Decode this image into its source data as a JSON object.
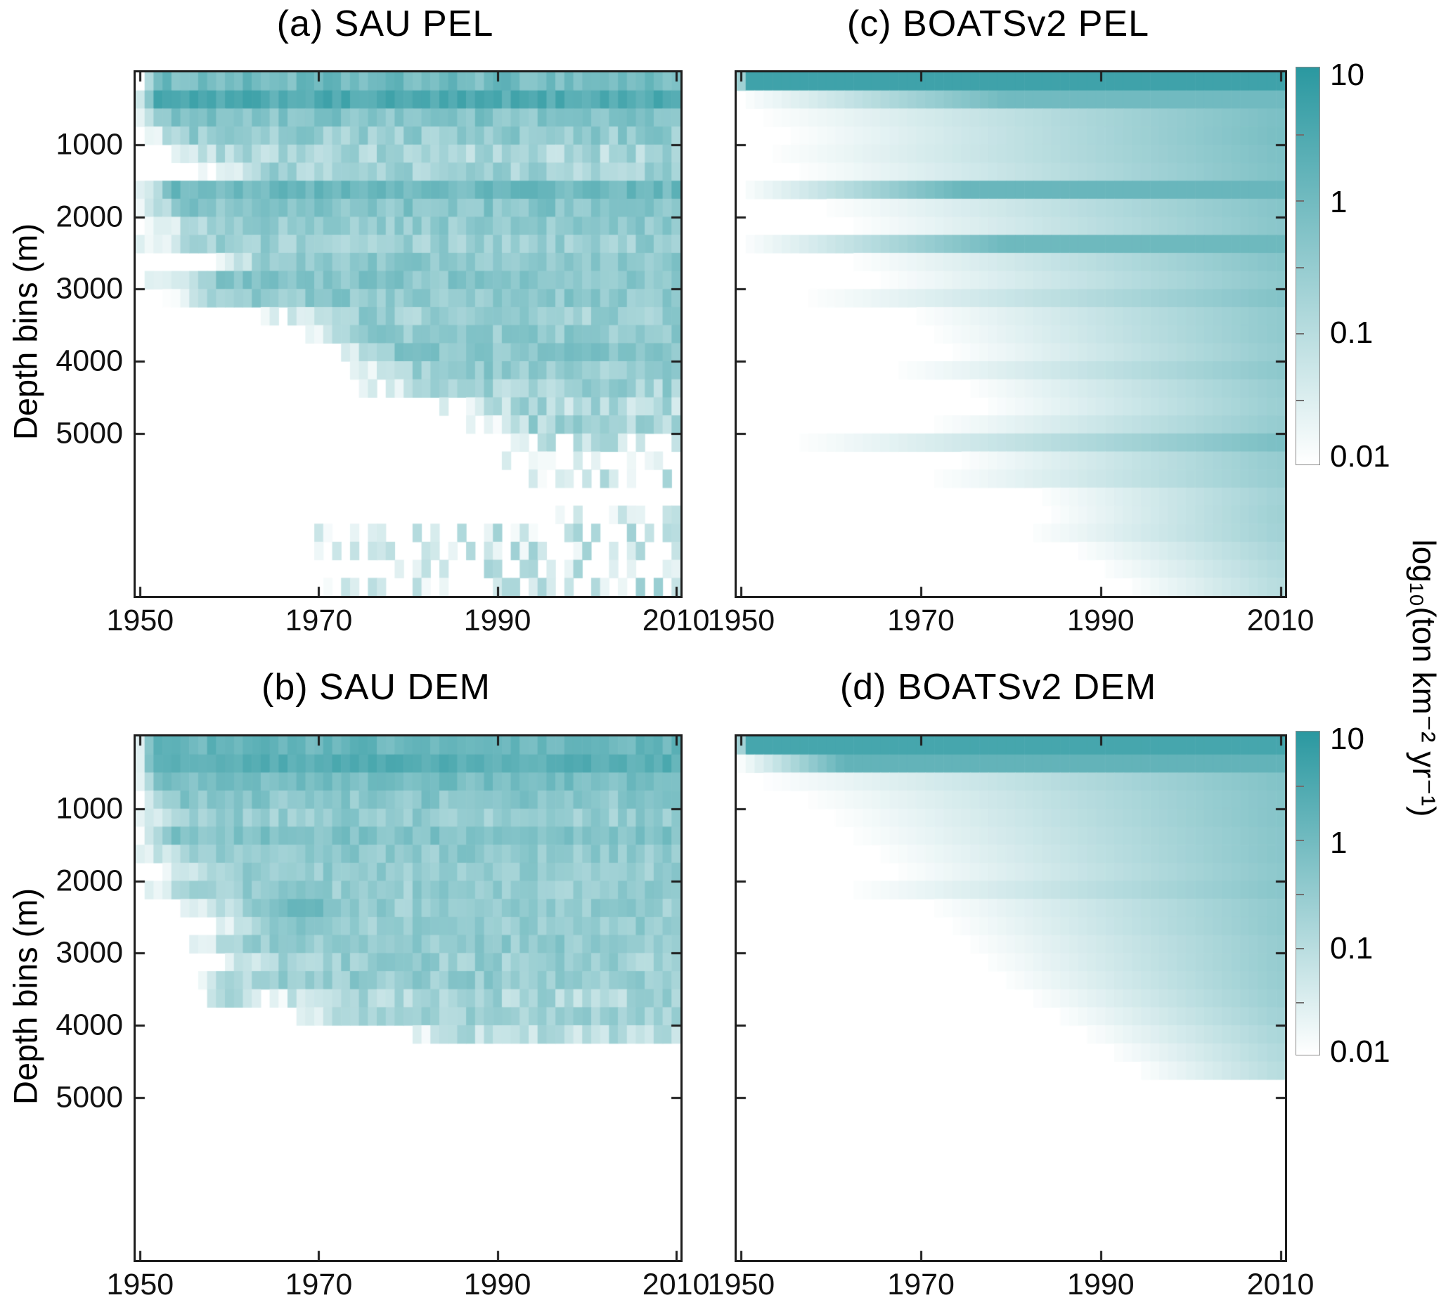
{
  "figure": {
    "colors": {
      "teal_max": "#2a98a0",
      "background": "#ffffff",
      "axis": "#1e1e1e"
    },
    "colorbar": {
      "label": "log₁₀(ton km⁻² yr⁻¹)",
      "tick_labels": [
        "10",
        "1",
        "0.1",
        "0.01"
      ],
      "tick_values": [
        10,
        1,
        0.1,
        0.01
      ],
      "scale": "log10",
      "range_log10": [
        -2,
        1
      ]
    },
    "x_axis": {
      "ticks": [
        1950,
        1970,
        1990,
        2010
      ],
      "range": [
        1949.5,
        2010.5
      ]
    },
    "y_axis": {
      "label": "Depth bins (m)",
      "ticks": [
        1000,
        2000,
        3000,
        4000,
        5000
      ],
      "range_m": [
        0,
        7250
      ],
      "bin_size_m": 250
    }
  },
  "chart_data": [
    {
      "type": "heatmap",
      "panel": "a",
      "title": "(a) SAU PEL",
      "source": "SAU",
      "guild": "PEL",
      "style": "noisy",
      "n_rows": 29,
      "n_cols": 61,
      "row_format": [
        "start_year",
        "value_at_2010_ton_km2_yr",
        "fade_years",
        "noise"
      ],
      "rows": [
        [
          1950,
          0.9,
          3,
          0.5
        ],
        [
          1950,
          2.8,
          2,
          0.4
        ],
        [
          1950,
          0.55,
          3,
          0.5
        ],
        [
          1950,
          0.3,
          6,
          0.6
        ],
        [
          1953,
          0.15,
          8,
          0.7
        ],
        [
          1957,
          0.2,
          8,
          0.6
        ],
        [
          1950,
          1.1,
          4,
          0.4
        ],
        [
          1950,
          0.5,
          5,
          0.5
        ],
        [
          1951,
          0.35,
          8,
          0.5
        ],
        [
          1950,
          0.28,
          8,
          0.6
        ],
        [
          1958,
          0.45,
          8,
          0.5
        ],
        [
          1950,
          0.5,
          10,
          0.5
        ],
        [
          1952,
          0.4,
          10,
          0.5
        ],
        [
          1964,
          0.25,
          10,
          0.6
        ],
        [
          1967,
          0.35,
          10,
          0.5
        ],
        [
          1971,
          0.45,
          8,
          0.5
        ],
        [
          1974,
          0.3,
          8,
          0.6
        ],
        [
          1975,
          0.2,
          10,
          0.7
        ],
        [
          1984,
          0.12,
          8,
          0.8
        ],
        [
          1986,
          0.15,
          8,
          0.8
        ],
        [
          1989,
          0.1,
          8,
          0.85
        ],
        [
          1991,
          0.07,
          8,
          0.9
        ],
        [
          1993,
          0.05,
          8,
          0.9
        ],
        [
          0,
          0,
          0,
          0
        ],
        [
          1996,
          0.04,
          6,
          0.9
        ],
        [
          1968,
          0.05,
          20,
          0.95
        ],
        [
          1970,
          0.06,
          20,
          0.95
        ],
        [
          1972,
          0.05,
          20,
          0.95
        ],
        [
          1968,
          0.07,
          20,
          0.9
        ]
      ],
      "patches": []
    },
    {
      "type": "heatmap",
      "panel": "c",
      "title": "(c) BOATSv2 PEL",
      "source": "BOATSv2",
      "guild": "PEL",
      "style": "smooth",
      "n_rows": 29,
      "n_cols": 61,
      "row_format": [
        "start_year",
        "value_at_2010_ton_km2_yr",
        "fade_years",
        "noise"
      ],
      "rows": [
        [
          1950,
          5,
          1,
          0
        ],
        [
          1950,
          1.0,
          30,
          0
        ],
        [
          1952,
          0.7,
          58,
          0
        ],
        [
          1955,
          0.75,
          55,
          0
        ],
        [
          1953,
          0.65,
          57,
          0
        ],
        [
          1956,
          0.6,
          54,
          0
        ],
        [
          1950,
          1.3,
          25,
          0
        ],
        [
          1959,
          0.5,
          51,
          0
        ],
        [
          1962,
          0.45,
          48,
          0
        ],
        [
          1950,
          1.1,
          30,
          0
        ],
        [
          1962,
          0.5,
          48,
          0
        ],
        [
          1965,
          0.4,
          45,
          0
        ],
        [
          1957,
          0.55,
          53,
          0
        ],
        [
          1969,
          0.35,
          41,
          0
        ],
        [
          1971,
          0.35,
          39,
          0
        ],
        [
          1973,
          0.3,
          37,
          0
        ],
        [
          1967,
          0.4,
          43,
          0
        ],
        [
          1975,
          0.28,
          35,
          0
        ],
        [
          1977,
          0.25,
          33,
          0
        ],
        [
          1971,
          0.3,
          39,
          0
        ],
        [
          1956,
          0.7,
          54,
          0
        ],
        [
          1974,
          0.3,
          36,
          0
        ],
        [
          1971,
          0.28,
          39,
          0
        ],
        [
          1983,
          0.2,
          27,
          0
        ],
        [
          1984,
          0.22,
          26,
          0
        ],
        [
          1982,
          0.2,
          28,
          0
        ],
        [
          1987,
          0.15,
          23,
          0
        ],
        [
          1990,
          0.12,
          20,
          0
        ],
        [
          1993,
          0.1,
          17,
          0
        ]
      ],
      "patches": []
    },
    {
      "type": "heatmap",
      "panel": "b",
      "title": "(b) SAU DEM",
      "source": "SAU",
      "guild": "DEM",
      "style": "noisy",
      "n_rows": 29,
      "n_cols": 61,
      "row_format": [
        "start_year",
        "value_at_2010_ton_km2_yr",
        "fade_years",
        "noise"
      ],
      "rows": [
        [
          1950,
          1.3,
          2,
          0.4
        ],
        [
          1950,
          2.2,
          2,
          0.3
        ],
        [
          1950,
          0.8,
          3,
          0.4
        ],
        [
          1950,
          0.45,
          5,
          0.5
        ],
        [
          1950,
          0.3,
          6,
          0.5
        ],
        [
          1950,
          0.6,
          4,
          0.4
        ],
        [
          1950,
          0.35,
          6,
          0.5
        ],
        [
          1952,
          0.3,
          8,
          0.5
        ],
        [
          1950,
          0.28,
          8,
          0.5
        ],
        [
          1955,
          0.3,
          8,
          0.5
        ],
        [
          1957,
          0.28,
          8,
          0.5
        ],
        [
          1955,
          0.35,
          8,
          0.5
        ],
        [
          1958,
          0.25,
          10,
          0.6
        ],
        [
          1957,
          0.3,
          8,
          0.5
        ],
        [
          1962,
          0.15,
          10,
          0.7
        ],
        [
          1967,
          0.22,
          8,
          0.5
        ],
        [
          1980,
          0.08,
          6,
          0.8
        ],
        [
          0,
          0,
          0,
          0
        ],
        [
          0,
          0,
          0,
          0
        ],
        [
          0,
          0,
          0,
          0
        ],
        [
          0,
          0,
          0,
          0
        ],
        [
          0,
          0,
          0,
          0
        ],
        [
          0,
          0,
          0,
          0
        ],
        [
          0,
          0,
          0,
          0
        ],
        [
          0,
          0,
          0,
          0
        ],
        [
          0,
          0,
          0,
          0
        ],
        [
          0,
          0,
          0,
          0
        ],
        [
          0,
          0,
          0,
          0
        ],
        [
          0,
          0,
          0,
          0
        ]
      ],
      "patches": [
        {
          "rows": [
            8,
            10
          ],
          "years": [
            1963,
            1973
          ],
          "value": 1.5
        },
        {
          "rows": [
            13,
            14
          ],
          "years": [
            1958,
            1962
          ],
          "value": 0.35
        }
      ]
    },
    {
      "type": "heatmap",
      "panel": "d",
      "title": "(d) BOATSv2 DEM",
      "source": "BOATSv2",
      "guild": "DEM",
      "style": "smooth",
      "n_rows": 29,
      "n_cols": 61,
      "row_format": [
        "start_year",
        "value_at_2010_ton_km2_yr",
        "fade_years",
        "noise"
      ],
      "rows": [
        [
          1950,
          4,
          1,
          0
        ],
        [
          1950,
          1.6,
          12,
          0
        ],
        [
          1952,
          0.55,
          58,
          0
        ],
        [
          1957,
          0.5,
          53,
          0
        ],
        [
          1960,
          0.5,
          50,
          0
        ],
        [
          1962,
          0.45,
          48,
          0
        ],
        [
          1965,
          0.45,
          45,
          0
        ],
        [
          1967,
          0.4,
          43,
          0
        ],
        [
          1962,
          0.45,
          48,
          0
        ],
        [
          1971,
          0.35,
          39,
          0
        ],
        [
          1973,
          0.35,
          37,
          0
        ],
        [
          1975,
          0.3,
          35,
          0
        ],
        [
          1977,
          0.3,
          33,
          0
        ],
        [
          1979,
          0.28,
          31,
          0
        ],
        [
          1982,
          0.25,
          28,
          0
        ],
        [
          1985,
          0.2,
          25,
          0
        ],
        [
          1988,
          0.15,
          22,
          0
        ],
        [
          1991,
          0.12,
          19,
          0
        ],
        [
          1994,
          0.1,
          16,
          0
        ],
        [
          0,
          0,
          0,
          0
        ],
        [
          0,
          0,
          0,
          0
        ],
        [
          0,
          0,
          0,
          0
        ],
        [
          0,
          0,
          0,
          0
        ],
        [
          0,
          0,
          0,
          0
        ],
        [
          0,
          0,
          0,
          0
        ],
        [
          0,
          0,
          0,
          0
        ],
        [
          0,
          0,
          0,
          0
        ],
        [
          0,
          0,
          0,
          0
        ],
        [
          0,
          0,
          0,
          0
        ]
      ],
      "patches": []
    }
  ]
}
